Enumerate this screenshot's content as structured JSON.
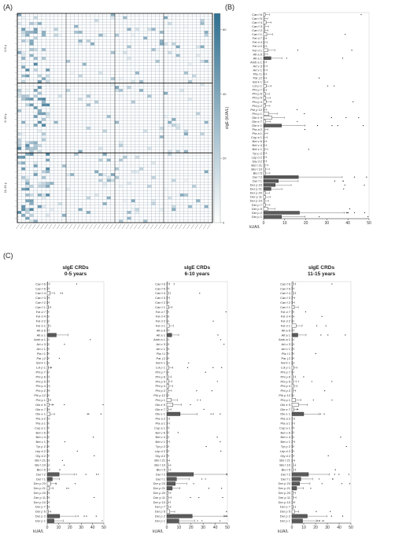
{
  "panels": {
    "a_label": "(A)",
    "b_label": "(B)",
    "c_label": "(C)"
  },
  "chart_data": [
    {
      "id": "A",
      "type": "heatmap",
      "colorbar": {
        "label": "sIgE (kUA/L)",
        "ticks": [
          "60",
          "40",
          "20",
          "0"
        ],
        "range": [
          0,
          65
        ],
        "colors": [
          "#ffffff",
          "#2f6f8f"
        ]
      },
      "group_labels": [
        "0-5 y",
        "6-10 y",
        "11-15 y"
      ],
      "n_rows": 72,
      "n_cols": 48,
      "group_breaks": [
        24,
        48
      ]
    },
    {
      "id": "B",
      "type": "bar",
      "orientation": "horizontal",
      "xlabel": "kUA/L",
      "xlim": [
        0,
        50
      ],
      "xticks": [
        "0",
        "10",
        "20",
        "30",
        "40",
        "50"
      ],
      "categories": [
        "Can f 6",
        "Can f 5",
        "Can f 4",
        "Can f 3",
        "Can f 2",
        "Can f 1",
        "Fel d 7",
        "Fel d 4",
        "Fel d 2",
        "Fel d 1",
        "Alt a 6",
        "Alt a 1",
        "Amb a 1",
        "Art v 3",
        "Art v 1",
        "Pla l 1",
        "Par j 2",
        "Sal k 1",
        "Lol p 1",
        "Phl p 7",
        "Phl p 6",
        "Phl p 5",
        "Phl p 4",
        "Phl p 2",
        "Phl p 12",
        "Phl p 1",
        "Ole e 9",
        "Ole e 7",
        "Ole e 1",
        "Pla a 2",
        "Pla a 1",
        "Cup a 1",
        "Bet v 6",
        "Bet v 4",
        "Bet v 1",
        "Tyr p 2",
        "Lep d 2",
        "Gly d 2",
        "Blo t 21",
        "Blo t 10",
        "Blo t 5",
        "Der f 2",
        "Der f 1",
        "Der p 23",
        "Der p 21",
        "Der p 20",
        "Der p 11",
        "Der p 10",
        "Der p 7",
        "Der p 5",
        "Der p 2",
        "Der p 1"
      ],
      "values": [
        0.8,
        0.4,
        1.2,
        0.6,
        0.5,
        1.5,
        0.2,
        0.3,
        0.2,
        2.0,
        0.4,
        3.5,
        0.2,
        0.3,
        0.3,
        0.2,
        0.2,
        0.4,
        1.2,
        0.2,
        0.8,
        1.0,
        1.2,
        0.9,
        0.2,
        2.5,
        4.0,
        1.0,
        8.5,
        0.5,
        0.4,
        0.3,
        0.2,
        0.2,
        0.4,
        0.2,
        0.2,
        0.2,
        0.5,
        0.8,
        0.9,
        16.5,
        7.0,
        5.5,
        3.5,
        0.8,
        1.0,
        0.6,
        0.9,
        2.0,
        17.0,
        8.5
      ]
    },
    {
      "id": "C1",
      "type": "bar",
      "orientation": "horizontal",
      "title": "sIgE CRDs",
      "subtitle": "0-5 years",
      "xlabel": "kUA/L",
      "xlim": [
        0,
        50
      ],
      "xticks": [
        "0",
        "10",
        "20",
        "30",
        "40",
        "50"
      ],
      "categories": [
        "Can f 6",
        "Can f 5",
        "Can f 4",
        "Can f 3",
        "Can f 2",
        "Can f 1",
        "Fel d 7",
        "Fel d 4",
        "Fel d 2",
        "Fel d 1",
        "Alt a 6",
        "Alt a 1",
        "Amb a 1",
        "Art v 3",
        "Art v 1",
        "Pla l 1",
        "Par j 2",
        "Sal k 1",
        "Lol p 1",
        "Phl p 7",
        "Phl p 6",
        "Phl p 5",
        "Phl p 4",
        "Phl p 2",
        "Phl p 12",
        "Phl p 1",
        "Ole e 9",
        "Ole e 7",
        "Ole e 1",
        "Pla a 2",
        "Pla a 1",
        "Cup a 1",
        "Bet v 6",
        "Bet v 4",
        "Bet v 1",
        "Tyr p 2",
        "Lep d 2",
        "Gly d 2",
        "Blo t 21",
        "Blo t 10",
        "Blo t 5",
        "Der f 2",
        "Der f 1",
        "Der p 23",
        "Der p 21",
        "Der p 20",
        "Der p 11",
        "Der p 10",
        "Der p 7",
        "Der p 5",
        "Der p 2",
        "Der p 1"
      ],
      "values": [
        0.5,
        0.3,
        2.5,
        0.4,
        0.3,
        1.0,
        0.2,
        0.2,
        0.2,
        0.8,
        0.3,
        8.0,
        0.2,
        0.2,
        0.2,
        0.2,
        0.2,
        0.2,
        0.9,
        0.2,
        0.3,
        0.4,
        0.5,
        0.4,
        0.2,
        1.0,
        1.5,
        0.4,
        2.5,
        0.3,
        0.2,
        0.2,
        0.2,
        0.2,
        0.2,
        0.2,
        0.2,
        0.2,
        0.3,
        0.3,
        0.5,
        10.5,
        4.5,
        3.0,
        2.0,
        0.4,
        0.3,
        0.3,
        0.4,
        1.0,
        11.0,
        6.0
      ]
    },
    {
      "id": "C2",
      "type": "bar",
      "orientation": "horizontal",
      "title": "sIgE CRDs",
      "subtitle": "6-10 years",
      "xlabel": "kUA/L",
      "xlim": [
        0,
        50
      ],
      "xticks": [
        "0",
        "10",
        "20",
        "30",
        "40",
        "50"
      ],
      "categories": [
        "Can f 6",
        "Can f 5",
        "Can f 4",
        "Can f 3",
        "Can f 2",
        "Can f 1",
        "Fel d 7",
        "Fel d 4",
        "Fel d 2",
        "Fel d 1",
        "Alt a 6",
        "Alt a 1",
        "Amb a 1",
        "Art v 3",
        "Art v 1",
        "Pla l 1",
        "Par j 2",
        "Sal k 1",
        "Lol p 1",
        "Phl p 7",
        "Phl p 6",
        "Phl p 5",
        "Phl p 4",
        "Phl p 2",
        "Phl p 12",
        "Phl p 1",
        "Ole e 9",
        "Ole e 7",
        "Ole e 1",
        "Pla a 2",
        "Pla a 1",
        "Cup a 1",
        "Bet v 6",
        "Bet v 4",
        "Bet v 1",
        "Tyr p 2",
        "Lep d 2",
        "Gly d 2",
        "Blo t 21",
        "Blo t 10",
        "Blo t 5",
        "Der f 2",
        "Der f 1",
        "Der p 23",
        "Der p 21",
        "Der p 20",
        "Der p 11",
        "Der p 10",
        "Der p 7",
        "Der p 5",
        "Der p 2",
        "Der p 1"
      ],
      "values": [
        0.6,
        0.4,
        0.8,
        0.5,
        0.4,
        1.5,
        0.2,
        0.3,
        0.2,
        2.0,
        0.4,
        4.0,
        0.2,
        0.3,
        0.3,
        0.2,
        0.2,
        0.4,
        1.8,
        0.2,
        1.2,
        1.5,
        1.8,
        1.3,
        0.2,
        3.5,
        5.0,
        1.2,
        11.0,
        0.6,
        0.5,
        0.4,
        0.2,
        0.2,
        0.5,
        0.2,
        0.2,
        0.2,
        0.6,
        1.0,
        1.0,
        22.0,
        8.0,
        7.0,
        4.5,
        1.0,
        1.2,
        0.8,
        1.0,
        2.5,
        21.0,
        10.0
      ]
    },
    {
      "id": "C3",
      "type": "bar",
      "orientation": "horizontal",
      "title": "sIgE CRDs",
      "subtitle": "11-15 years",
      "xlabel": "kUA/L",
      "xlim": [
        0,
        50
      ],
      "xticks": [
        "0",
        "10",
        "20",
        "30",
        "40",
        "50"
      ],
      "categories": [
        "Can f 6",
        "Can f 5",
        "Can f 4",
        "Can f 3",
        "Can f 2",
        "Can f 1",
        "Fel d 7",
        "Fel d 4",
        "Fel d 2",
        "Fel d 1",
        "Alt a 6",
        "Alt a 1",
        "Amb a 1",
        "Art v 3",
        "Art v 1",
        "Pla l 1",
        "Par j 2",
        "Sal k 1",
        "Lol p 1",
        "Phl p 7",
        "Phl p 6",
        "Phl p 5",
        "Phl p 4",
        "Phl p 2",
        "Phl p 12",
        "Phl p 1",
        "Ole e 9",
        "Ole e 7",
        "Ole e 1",
        "Pla a 2",
        "Pla a 1",
        "Cup a 1",
        "Bet v 6",
        "Bet v 4",
        "Bet v 1",
        "Tyr p 2",
        "Lep d 2",
        "Gly d 2",
        "Blo t 21",
        "Blo t 10",
        "Blo t 5",
        "Der f 2",
        "Der f 1",
        "Der p 23",
        "Der p 21",
        "Der p 20",
        "Der p 11",
        "Der p 10",
        "Der p 7",
        "Der p 5",
        "Der p 2",
        "Der p 1"
      ],
      "values": [
        1.0,
        0.4,
        1.0,
        0.6,
        0.5,
        2.0,
        0.2,
        0.3,
        0.2,
        3.5,
        0.4,
        5.0,
        0.2,
        0.3,
        0.3,
        0.2,
        0.2,
        0.4,
        1.5,
        0.2,
        1.0,
        1.2,
        1.6,
        1.0,
        0.2,
        3.0,
        5.5,
        1.5,
        10.0,
        0.6,
        0.5,
        0.4,
        0.2,
        0.2,
        0.6,
        0.2,
        0.2,
        0.2,
        0.6,
        1.0,
        1.0,
        14.0,
        7.5,
        6.5,
        4.0,
        0.9,
        1.1,
        0.7,
        0.9,
        2.2,
        13.0,
        9.0
      ]
    }
  ]
}
